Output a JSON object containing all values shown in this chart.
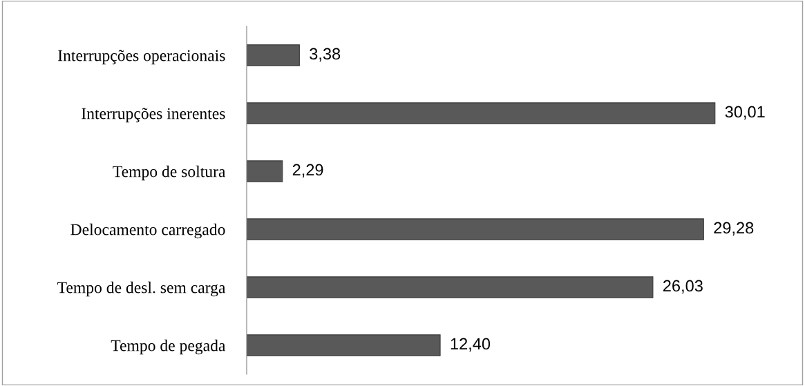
{
  "chart_data": {
    "type": "bar",
    "orientation": "horizontal",
    "categories": [
      "Interrupções operacionais",
      "Interrupções inerentes",
      "Tempo de soltura",
      "Delocamento carregado",
      "Tempo de desl. sem carga",
      "Tempo de pegada"
    ],
    "values": [
      3.38,
      30.01,
      2.29,
      29.28,
      26.03,
      12.4
    ],
    "color": "#595959",
    "data_labels": true,
    "value_labels": [
      "3,38",
      "30,01",
      "2,29",
      "29,28",
      "26,03",
      "12,40"
    ],
    "grid": false,
    "legend": false
  }
}
